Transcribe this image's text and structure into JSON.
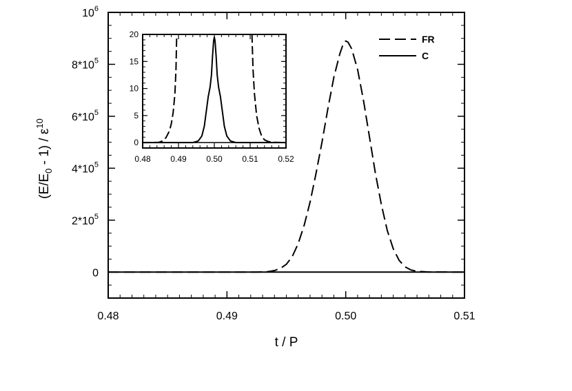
{
  "chart_data": {
    "type": "line",
    "xlabel": "t / P",
    "ylabel": "(E/E0 - 1) / ε10",
    "ylabel_parts": {
      "a": "(E/E",
      "sub": "0",
      "b": " - 1) / ε",
      "sup": "10"
    },
    "xlim": [
      0.48,
      0.51
    ],
    "ylim": [
      -100000,
      1000000
    ],
    "x_ticks": [
      0.48,
      0.49,
      0.5,
      0.51
    ],
    "x_tick_labels": [
      "0.48",
      "0.49",
      "0.50",
      "0.51"
    ],
    "y_ticks": [
      0,
      200000,
      400000,
      600000,
      800000,
      1000000
    ],
    "y_tick_labels": [
      {
        "text": "0",
        "base": "0",
        "exp": ""
      },
      {
        "text": "2*10^5",
        "base": "2*10",
        "exp": "5"
      },
      {
        "text": "4*10^5",
        "base": "4*10",
        "exp": "5"
      },
      {
        "text": "6*10^5",
        "base": "6*10",
        "exp": "5"
      },
      {
        "text": "8*10^5",
        "base": "8*10",
        "exp": "5"
      },
      {
        "text": "10^6",
        "base": "10",
        "exp": "6"
      }
    ],
    "legend": {
      "placement": "top-right",
      "entries": [
        "FR",
        "C"
      ]
    },
    "series": [
      {
        "name": "FR",
        "style": "dashed",
        "x": [
          0.48,
          0.4925,
          0.4935,
          0.494,
          0.4945,
          0.495,
          0.4955,
          0.496,
          0.4965,
          0.497,
          0.4975,
          0.498,
          0.4985,
          0.499,
          0.4995,
          0.4998,
          0.5,
          0.5002,
          0.5005,
          0.501,
          0.5015,
          0.502,
          0.5025,
          0.503,
          0.5035,
          0.504,
          0.5045,
          0.505,
          0.5055,
          0.506,
          0.507,
          0.51
        ],
        "y": [
          0,
          0,
          2000,
          6000,
          14000,
          30000,
          60000,
          110000,
          180000,
          270000,
          380000,
          500000,
          630000,
          750000,
          840000,
          880000,
          890000,
          885000,
          860000,
          780000,
          660000,
          520000,
          380000,
          260000,
          160000,
          90000,
          45000,
          20000,
          8000,
          3000,
          500,
          0
        ]
      },
      {
        "name": "C",
        "style": "solid",
        "x": [
          0.48,
          0.51
        ],
        "y": [
          0,
          0
        ]
      }
    ],
    "inset": {
      "xlim": [
        0.48,
        0.52
      ],
      "ylim": [
        -1,
        20
      ],
      "x_ticks": [
        0.48,
        0.49,
        0.5,
        0.51,
        0.52
      ],
      "x_tick_labels": [
        "0.48",
        "0.49",
        "0.50",
        "0.51",
        "0.52"
      ],
      "y_ticks": [
        0,
        5,
        10,
        15,
        20
      ],
      "y_tick_labels": [
        "0",
        "5",
        "10",
        "15",
        "20"
      ],
      "series": [
        {
          "name": "FR",
          "style": "dashed",
          "segments": [
            {
              "x": [
                0.48,
                0.4845,
                0.4855,
                0.4865,
                0.4875,
                0.488,
                0.4885,
                0.489,
                0.4893,
                0.4895
              ],
              "y": [
                0,
                0.05,
                0.3,
                0.9,
                2.2,
                3.5,
                5.5,
                9.0,
                13.5,
                20
              ]
            },
            {
              "x": [
                0.5105,
                0.5108,
                0.5112,
                0.5118,
                0.5125,
                0.5132,
                0.514,
                0.515,
                0.5165,
                0.52
              ],
              "y": [
                20,
                13.5,
                9.0,
                5.0,
                2.6,
                1.2,
                0.5,
                0.2,
                0.05,
                0
              ]
            }
          ]
        },
        {
          "name": "C",
          "style": "solid",
          "x": [
            0.48,
            0.494,
            0.4955,
            0.4965,
            0.4972,
            0.4978,
            0.4983,
            0.4988,
            0.4992,
            0.4995,
            0.4998,
            0.5,
            0.5002,
            0.5005,
            0.5008,
            0.5012,
            0.5017,
            0.5022,
            0.5028,
            0.5035,
            0.5045,
            0.506,
            0.52
          ],
          "y": [
            0,
            0,
            0.3,
            1.2,
            3.0,
            6.0,
            8.5,
            10.2,
            12.5,
            16.0,
            18.8,
            19.5,
            18.8,
            16.0,
            12.5,
            10.2,
            8.5,
            6.0,
            3.0,
            1.2,
            0.3,
            0,
            0
          ]
        }
      ]
    }
  }
}
